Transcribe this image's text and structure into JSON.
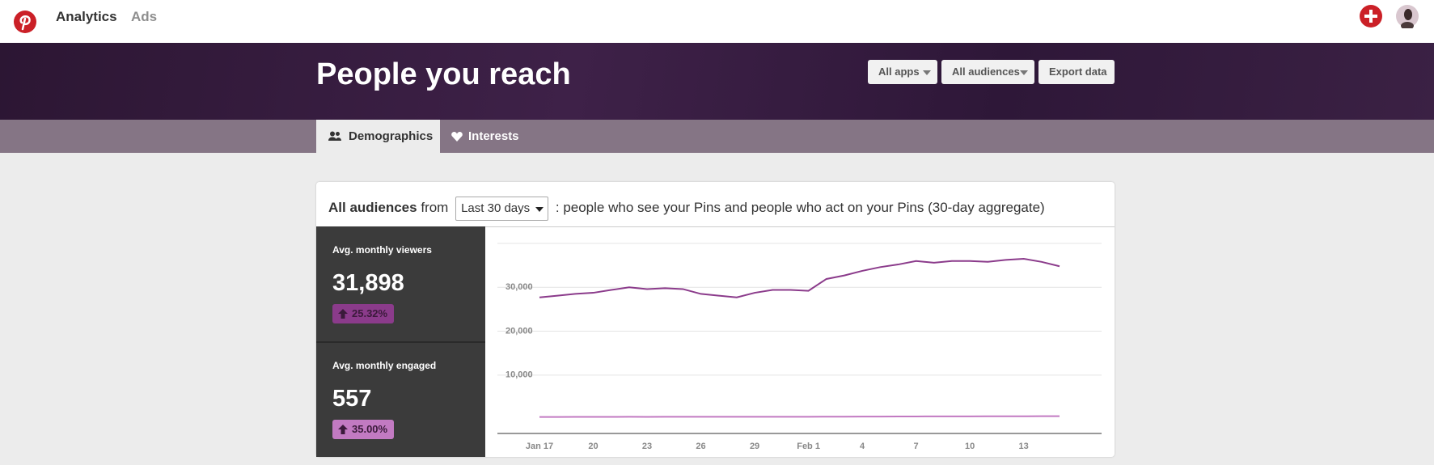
{
  "nav": {
    "items": [
      "Analytics",
      "Ads"
    ]
  },
  "header": {
    "title": "People you reach",
    "buttons": [
      "All apps",
      "All audiences",
      "Export data"
    ]
  },
  "tabs": [
    "Demographics",
    "Interests"
  ],
  "panel": {
    "audience": "All audiences",
    "from": "from",
    "range": "Last 30 days",
    "description": ": people who see your Pins and people who act on your Pins (30-day aggregate)"
  },
  "stats": [
    {
      "label": "Avg. monthly viewers",
      "value": "31,898",
      "change": "25.32%"
    },
    {
      "label": "Avg. monthly engaged",
      "value": "557",
      "change": "35.00%"
    }
  ],
  "chart_data": {
    "type": "line",
    "categories": [
      "Jan 17",
      null,
      null,
      "20",
      null,
      null,
      "23",
      null,
      null,
      "26",
      null,
      null,
      "29",
      null,
      null,
      "Feb 1",
      null,
      null,
      "4",
      null,
      null,
      "7",
      null,
      null,
      "10",
      null,
      null,
      "13",
      null,
      null
    ],
    "series": [
      {
        "name": "Avg. monthly viewers",
        "color": "#8b3b8b",
        "values": [
          27700,
          28100,
          28500,
          28750,
          29400,
          30000,
          29600,
          29800,
          29600,
          28500,
          28100,
          27700,
          28750,
          29400,
          29400,
          29200,
          31900,
          32700,
          33750,
          34600,
          35200,
          36000,
          35600,
          36000,
          36000,
          35800,
          36250,
          36500,
          35800,
          34800
        ]
      },
      {
        "name": "Avg. monthly engaged",
        "color": "#c27ac2",
        "values": [
          450,
          460,
          470,
          470,
          480,
          490,
          480,
          490,
          500,
          500,
          490,
          490,
          500,
          510,
          510,
          510,
          520,
          530,
          540,
          550,
          560,
          580,
          590,
          600,
          600,
          610,
          620,
          620,
          630,
          640
        ]
      }
    ],
    "ylim": [
      -3300,
      40000
    ],
    "yticks": [
      {
        "value": 10000,
        "label": "10,000"
      },
      {
        "value": 20000,
        "label": "20,000"
      },
      {
        "value": 30000,
        "label": "30,000"
      }
    ],
    "grid": true
  }
}
